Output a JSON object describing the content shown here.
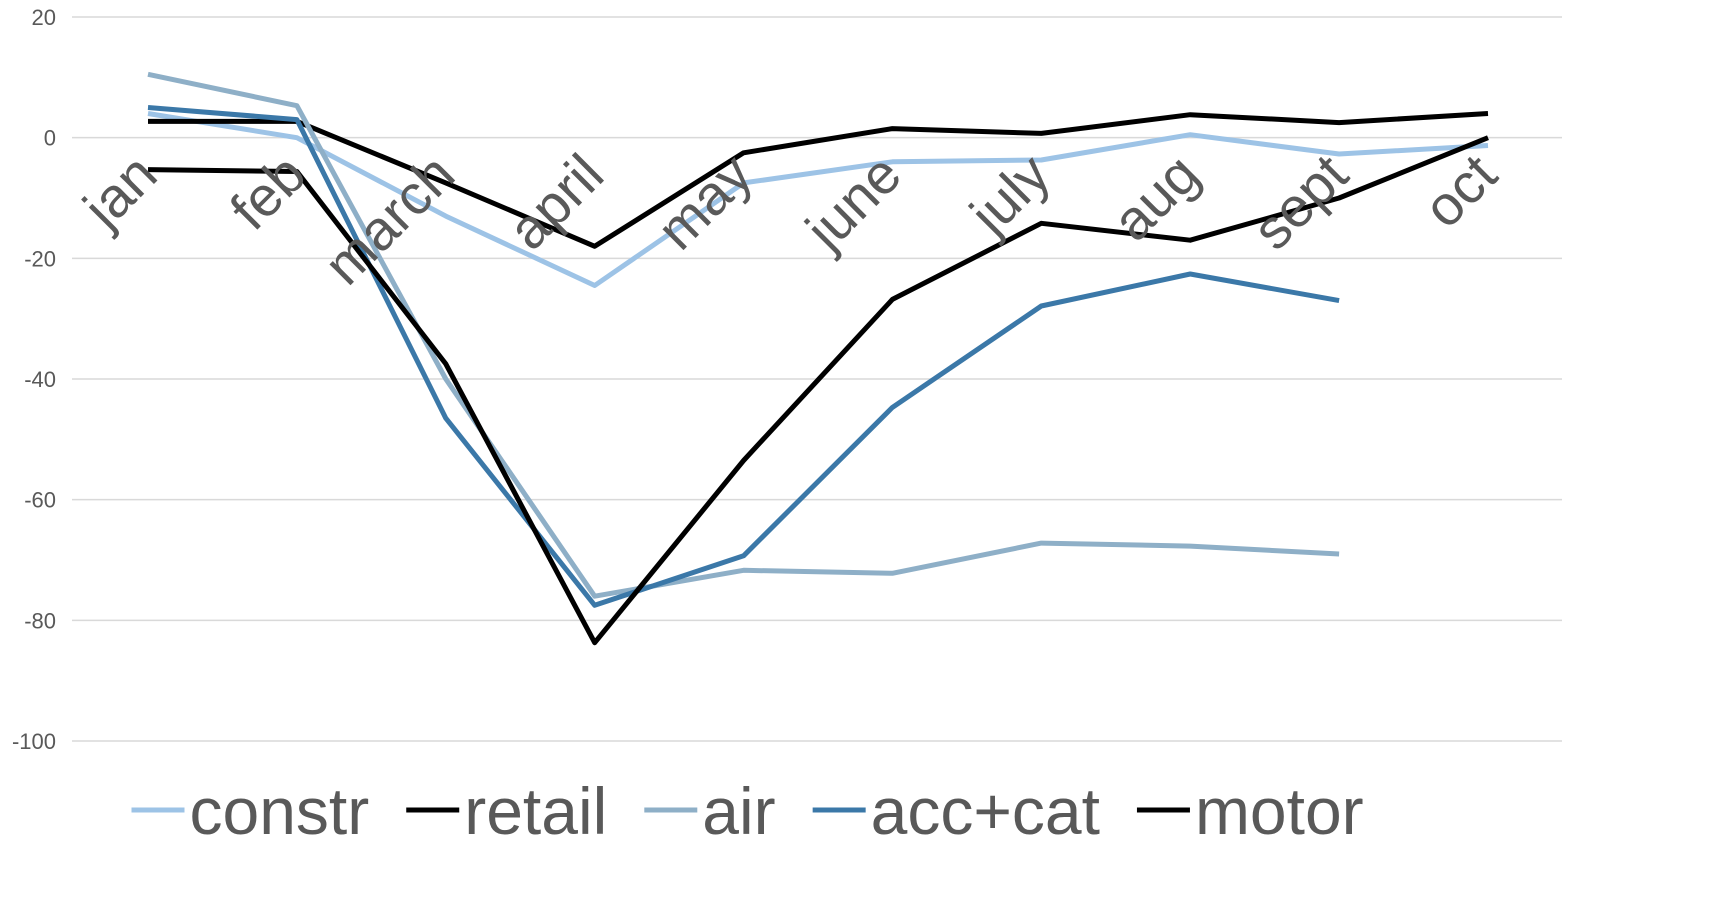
{
  "chart_data": {
    "type": "line",
    "title": "",
    "xlabel": "",
    "ylabel": "",
    "categories": [
      "jan",
      "feb",
      "march",
      "april",
      "may",
      "june",
      "july",
      "aug",
      "sept",
      "oct"
    ],
    "ylim": [
      -100,
      20
    ],
    "yticks": [
      "20",
      "0",
      "-20",
      "-40",
      "-60",
      "-80",
      "-100"
    ],
    "ytick_values": [
      20,
      0,
      -20,
      -40,
      -60,
      -80,
      -100
    ],
    "grid": true,
    "legend_position": "bottom",
    "series": [
      {
        "name": "constr",
        "color": "#9dc3e6",
        "values": [
          4,
          0,
          -13,
          -24.5,
          -7.5,
          -4,
          -3.7,
          0.5,
          -2.7,
          -1.3
        ]
      },
      {
        "name": "retail",
        "color": "#000000",
        "values": [
          2.7,
          2.7,
          -7.5,
          -18,
          -2.5,
          1.5,
          0.7,
          3.8,
          2.5,
          4
        ]
      },
      {
        "name": "air",
        "color": "#8eafc7",
        "values": [
          10.5,
          5.3,
          -40,
          -76,
          -71.7,
          -72.2,
          -67.2,
          -67.7,
          -69,
          null
        ]
      },
      {
        "name": "acc+cat",
        "color": "#3b78a8",
        "values": [
          5,
          3,
          -46.5,
          -77.5,
          -69.3,
          -44.7,
          -27.9,
          -22.6,
          -27,
          null
        ]
      },
      {
        "name": "motor",
        "color": "#000000",
        "values": [
          -5.3,
          -5.6,
          -37.5,
          -83.7,
          -53.5,
          -26.8,
          -14.2,
          -17,
          -10,
          0
        ]
      }
    ]
  }
}
